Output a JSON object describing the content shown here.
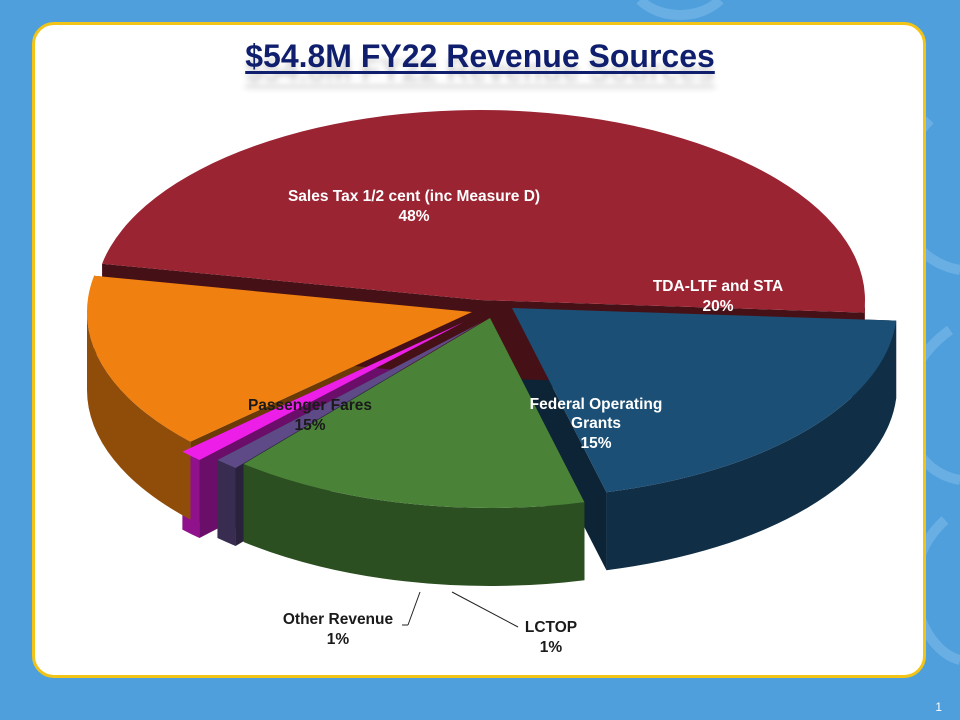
{
  "slide": {
    "page_number": "1"
  },
  "chart_data": {
    "type": "pie",
    "title": "$54.8M FY22 Revenue Sources",
    "legend": "none",
    "slices": [
      {
        "label": "Sales Tax 1/2 cent (inc Measure D)",
        "value": 48,
        "value_label": "48%",
        "color": "#9b2433"
      },
      {
        "label": "TDA-LTF and STA",
        "value": 20,
        "value_label": "20%",
        "color": "#1b4f75"
      },
      {
        "label": "Federal Operating Grants",
        "value": 15,
        "value_label": "15%",
        "color": "#4a8338"
      },
      {
        "label": "LCTOP",
        "value": 1,
        "value_label": "1%",
        "color": "#5e4a86"
      },
      {
        "label": "Other Revenue",
        "value": 1,
        "value_label": "1%",
        "color": "#ee1ee9"
      },
      {
        "label": "Passenger Fares",
        "value": 15,
        "value_label": "15%",
        "color": "#f08010"
      }
    ]
  }
}
